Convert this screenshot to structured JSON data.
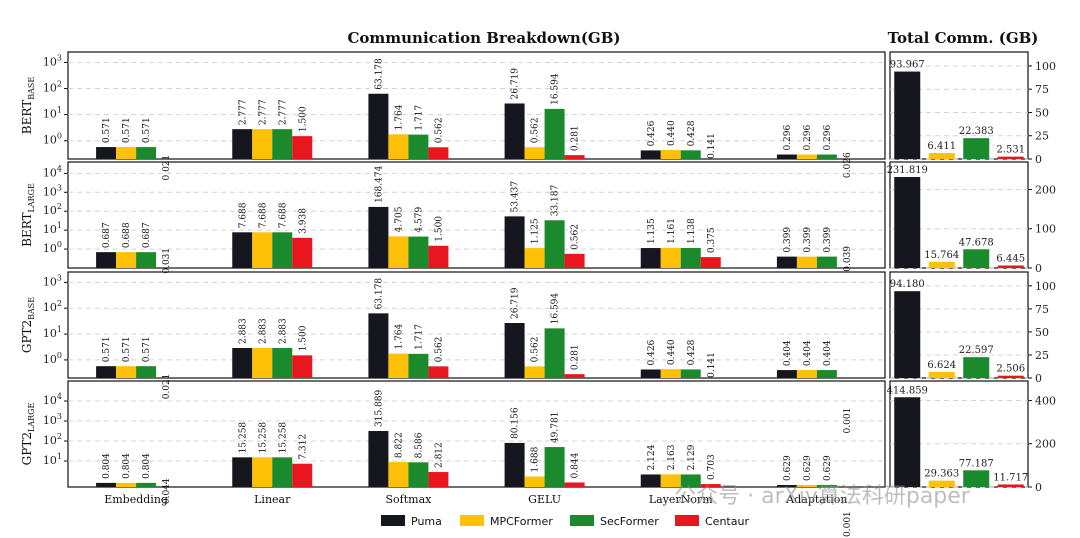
{
  "chart_data": {
    "type": "bar",
    "breakdown_title": "Communication Breakdown(GB)",
    "total_title": "Total Comm. (GB)",
    "categories": [
      "Embedding",
      "Linear",
      "Softmax",
      "GELU",
      "LayerNorm",
      "Adaptation"
    ],
    "legend": [
      "Puma",
      "MPCFormer",
      "SecFormer",
      "Centaur"
    ],
    "colors": {
      "Puma": "#16161e",
      "MPCFormer": "#ffc107",
      "SecFormer": "#1b8a2c",
      "Centaur": "#e8161e"
    },
    "rows": [
      {
        "model": "BERT",
        "subscript": "BASE",
        "breakdown_scale": "log",
        "breakdown_ylim_exp": [
          -0.7,
          3.4
        ],
        "breakdown_ticks": [
          0,
          1,
          2,
          3
        ],
        "series": [
          {
            "name": "Puma",
            "values": [
              0.571,
              2.777,
              63.178,
              26.719,
              0.426,
              0.296
            ]
          },
          {
            "name": "MPCFormer",
            "values": [
              0.571,
              2.777,
              1.764,
              0.562,
              0.44,
              0.296
            ]
          },
          {
            "name": "SecFormer",
            "values": [
              0.571,
              2.777,
              1.717,
              16.594,
              0.428,
              0.296
            ]
          },
          {
            "name": "Centaur",
            "values": [
              0.021,
              1.5,
              0.562,
              0.281,
              0.141,
              0.026
            ]
          }
        ],
        "totals": [
          93.967,
          6.411,
          22.383,
          2.531
        ],
        "total_ylim": [
          0,
          115
        ],
        "total_ticks": [
          0,
          25,
          50,
          75,
          100
        ]
      },
      {
        "model": "BERT",
        "subscript": "LARGE",
        "breakdown_scale": "log",
        "breakdown_ylim_exp": [
          -1.0,
          4.6
        ],
        "breakdown_ticks": [
          0,
          1,
          2,
          3,
          4
        ],
        "series": [
          {
            "name": "Puma",
            "values": [
              0.687,
              7.688,
              168.474,
              53.437,
              1.135,
              0.399
            ]
          },
          {
            "name": "MPCFormer",
            "values": [
              0.688,
              7.688,
              4.705,
              1.125,
              1.161,
              0.399
            ]
          },
          {
            "name": "SecFormer",
            "values": [
              0.687,
              7.688,
              4.579,
              33.187,
              1.138,
              0.399
            ]
          },
          {
            "name": "Centaur",
            "values": [
              0.031,
              3.938,
              1.5,
              0.562,
              0.375,
              0.039
            ]
          }
        ],
        "totals": [
          231.819,
          15.764,
          47.678,
          6.445
        ],
        "total_ylim": [
          0,
          270
        ],
        "total_ticks": [
          0,
          100,
          200
        ]
      },
      {
        "model": "GPT2",
        "subscript": "BASE",
        "breakdown_scale": "log",
        "breakdown_ylim_exp": [
          -0.7,
          3.4
        ],
        "breakdown_ticks": [
          0,
          1,
          2,
          3
        ],
        "series": [
          {
            "name": "Puma",
            "values": [
              0.571,
              2.883,
              63.178,
              26.719,
              0.426,
              0.404
            ]
          },
          {
            "name": "MPCFormer",
            "values": [
              0.571,
              2.883,
              1.764,
              0.562,
              0.44,
              0.404
            ]
          },
          {
            "name": "SecFormer",
            "values": [
              0.571,
              2.883,
              1.717,
              16.594,
              0.428,
              0.404
            ]
          },
          {
            "name": "Centaur",
            "values": [
              0.021,
              1.5,
              0.562,
              0.281,
              0.141,
              0.001
            ]
          }
        ],
        "totals": [
          94.18,
          6.624,
          22.597,
          2.506
        ],
        "total_ylim": [
          0,
          115
        ],
        "total_ticks": [
          0,
          25,
          50,
          75,
          100
        ]
      },
      {
        "model": "GPT2",
        "subscript": "LARGE",
        "breakdown_scale": "log",
        "breakdown_ylim_exp": [
          -0.3,
          5.0
        ],
        "breakdown_ticks": [
          1,
          2,
          3,
          4
        ],
        "series": [
          {
            "name": "Puma",
            "values": [
              0.804,
              15.258,
              315.889,
              80.156,
              2.124,
              0.629
            ]
          },
          {
            "name": "MPCFormer",
            "values": [
              0.804,
              15.258,
              8.822,
              1.688,
              2.163,
              0.629
            ]
          },
          {
            "name": "SecFormer",
            "values": [
              0.804,
              15.258,
              8.586,
              49.781,
              2.129,
              0.629
            ]
          },
          {
            "name": "Centaur",
            "values": [
              0.044,
              7.312,
              2.812,
              0.844,
              0.703,
              0.001
            ]
          }
        ],
        "totals": [
          414.859,
          29.363,
          77.187,
          11.717
        ],
        "total_ylim": [
          0,
          490
        ],
        "total_ticks": [
          0,
          200,
          400
        ]
      }
    ]
  },
  "watermark": "公众号 · arXiv算法科研paper"
}
